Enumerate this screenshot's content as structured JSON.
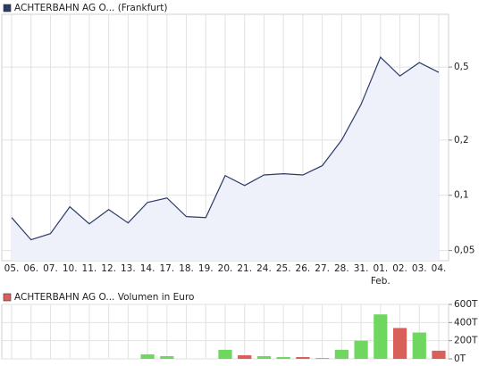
{
  "chart_data": [
    {
      "type": "line",
      "log_scale": true,
      "grid": true,
      "area": true,
      "series": [
        {
          "name": "ACHTERBAHN AG O... (Frankfurt)",
          "color": "#2b3a67",
          "values": [
            0.0756,
            0.0572,
            0.0618,
            0.0865,
            0.0699,
            0.0836,
            0.0707,
            0.0914,
            0.0967,
            0.0765,
            0.0756,
            0.128,
            0.113,
            0.129,
            0.131,
            0.129,
            0.145,
            0.2,
            0.313,
            0.566,
            0.447,
            0.529,
            0.468
          ]
        }
      ],
      "categories": [
        "05.",
        "06.",
        "07.",
        "10.",
        "11.",
        "12.",
        "13.",
        "14.",
        "17.",
        "18.",
        "19.",
        "20.",
        "21.",
        "24.",
        "25.",
        "26.",
        "27.",
        "28.",
        "31.",
        "01.",
        "02.",
        "03.",
        "04."
      ],
      "sublabels": [
        null,
        null,
        null,
        null,
        null,
        null,
        null,
        null,
        null,
        null,
        null,
        null,
        null,
        null,
        null,
        null,
        null,
        null,
        null,
        "Feb.",
        null,
        null,
        null
      ],
      "ylim": [
        0.044,
        0.97
      ],
      "yticks": [
        {
          "value": 0.05,
          "label": "0,05"
        },
        {
          "value": 0.1,
          "label": "0,1"
        },
        {
          "value": 0.2,
          "label": "0,2"
        },
        {
          "value": 0.5,
          "label": "0,5"
        }
      ]
    },
    {
      "type": "bar",
      "grid": true,
      "series": [
        {
          "name": "ACHTERBAHN AG O... Volumen in Euro",
          "color": "#d9605a",
          "values": [
            0,
            0,
            0,
            0,
            0,
            0,
            0,
            50000,
            30000,
            0,
            0,
            100000,
            40000,
            30000,
            20000,
            20000,
            10000,
            100000,
            200000,
            490000,
            340000,
            290000,
            90000
          ],
          "colors": [
            "#6fd660",
            "#6fd660",
            "#6fd660",
            "#6fd660",
            "#6fd660",
            "#6fd660",
            "#6fd660",
            "#6fd660",
            "#6fd660",
            "#6fd660",
            "#6fd660",
            "#6fd660",
            "#d9605a",
            "#6fd660",
            "#6fd660",
            "#d9605a",
            "#6fd660",
            "#6fd660",
            "#6fd660",
            "#6fd660",
            "#d9605a",
            "#6fd660",
            "#d9605a"
          ]
        }
      ],
      "ylim": [
        0,
        600000
      ],
      "yticks": [
        {
          "value": 0,
          "label": "0T"
        },
        {
          "value": 200000,
          "label": "200T"
        },
        {
          "value": 400000,
          "label": "400T"
        },
        {
          "value": 600000,
          "label": "600T"
        }
      ]
    }
  ]
}
